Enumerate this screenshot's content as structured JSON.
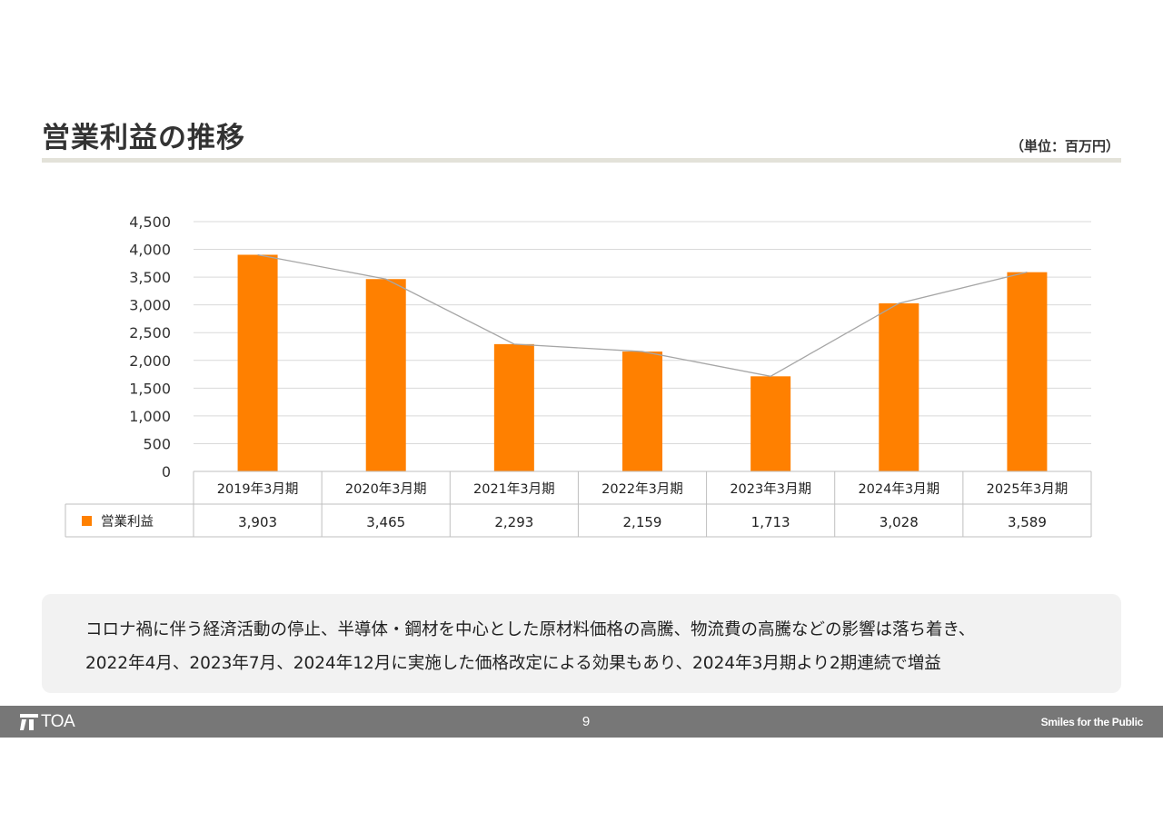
{
  "header": {
    "title": "営業利益の推移",
    "unit": "（単位：百万円）"
  },
  "chart_data": {
    "type": "bar",
    "categories": [
      "2019年3月期",
      "2020年3月期",
      "2021年3月期",
      "2022年3月期",
      "2023年3月期",
      "2024年3月期",
      "2025年3月期"
    ],
    "series": [
      {
        "name": "営業利益",
        "values": [
          3903,
          3465,
          2293,
          2159,
          1713,
          3028,
          3589
        ],
        "color": "#ff8000"
      }
    ],
    "value_labels": [
      "3,903",
      "3,465",
      "2,293",
      "2,159",
      "1,713",
      "3,028",
      "3,589"
    ],
    "trend_line": {
      "color": "#a6a6a6"
    },
    "ylim": [
      0,
      4500
    ],
    "yticks": [
      0,
      500,
      1000,
      1500,
      2000,
      2500,
      3000,
      3500,
      4000,
      4500
    ],
    "ytick_labels": [
      "0",
      "500",
      "1,000",
      "1,500",
      "2,000",
      "2,500",
      "3,000",
      "3,500",
      "4,000",
      "4,500"
    ],
    "grid": true,
    "data_table": true
  },
  "note": {
    "line1": "コロナ禍に伴う経済活動の停止、半導体・鋼材を中心とした原材料価格の高騰、物流費の高騰などの影響は落ち着き、",
    "line2": "2022年4月、2023年7月、2024年12月に実施した価格改定による効果もあり、2024年3月期より2期連続で増益"
  },
  "footer": {
    "logo_text": "TOA",
    "page_number": "9",
    "tagline": "Smiles for the Public"
  }
}
